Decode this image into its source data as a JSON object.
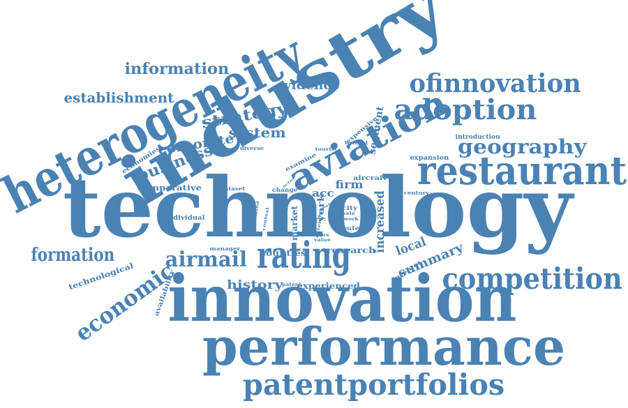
{
  "cloud": {
    "color": "#4a82b4",
    "words": [
      {
        "id": "technology",
        "text": "technology",
        "weight": 1.0
      },
      {
        "id": "innovation",
        "text": "innovation",
        "weight": 0.85
      },
      {
        "id": "industry",
        "text": "industry",
        "weight": 0.8
      },
      {
        "id": "heterogeneity",
        "text": "heterogeneity",
        "weight": 0.72
      },
      {
        "id": "performance",
        "text": "performance",
        "weight": 0.7
      },
      {
        "id": "restaurant",
        "text": "restaurant",
        "weight": 0.55
      },
      {
        "id": "aviation",
        "text": "aviation",
        "weight": 0.55
      },
      {
        "id": "rating",
        "text": "rating",
        "weight": 0.55
      },
      {
        "id": "patentportfolios",
        "text": "patentportfolios",
        "weight": 0.5
      },
      {
        "id": "competition",
        "text": "competition",
        "weight": 0.45
      },
      {
        "id": "adoption",
        "text": "adoption",
        "weight": 0.45
      },
      {
        "id": "ofinnovation",
        "text": "ofinnovation",
        "weight": 0.42
      },
      {
        "id": "economic",
        "text": "economic",
        "weight": 0.38
      },
      {
        "id": "geography",
        "text": "geography",
        "weight": 0.35
      },
      {
        "id": "airmail",
        "text": "airmail",
        "weight": 0.35
      },
      {
        "id": "formation",
        "text": "formation",
        "weight": 0.32
      },
      {
        "id": "business",
        "text": "business",
        "weight": 0.3
      },
      {
        "id": "information",
        "text": "information",
        "weight": 0.28
      },
      {
        "id": "establishment",
        "text": "establishment",
        "weight": 0.28
      },
      {
        "id": "strategy",
        "text": "strategy",
        "weight": 0.28
      },
      {
        "id": "system",
        "text": "system",
        "weight": 0.25
      },
      {
        "id": "corporate",
        "text": "corporate",
        "weight": 0.25
      },
      {
        "id": "summary",
        "text": "summary",
        "weight": 0.24
      },
      {
        "id": "local",
        "text": "local",
        "weight": 0.24
      },
      {
        "id": "evidence",
        "text": "evidence",
        "weight": 0.22
      },
      {
        "id": "history",
        "text": "history",
        "weight": 0.22
      },
      {
        "id": "increased",
        "text": "increased",
        "weight": 0.22
      },
      {
        "id": "firm",
        "text": "firm",
        "weight": 0.2
      },
      {
        "id": "segment",
        "text": "segment",
        "weight": 0.18
      },
      {
        "id": "acc",
        "text": "acc",
        "weight": 0.18
      },
      {
        "id": "research",
        "text": "research",
        "weight": 0.15
      },
      {
        "id": "counties",
        "text": "counties",
        "weight": 0.15
      },
      {
        "id": "experienced",
        "text": "experienced",
        "weight": 0.15
      },
      {
        "id": "comparative",
        "text": "comparative",
        "weight": 0.14
      },
      {
        "id": "york",
        "text": "york",
        "weight": 0.14
      },
      {
        "id": "market",
        "text": "market",
        "weight": 0.14
      },
      {
        "id": "technological",
        "text": "technological",
        "weight": 0.13
      },
      {
        "id": "individual",
        "text": "individual",
        "weight": 0.12
      },
      {
        "id": "introduction",
        "text": "introduction",
        "weight": 0.12
      },
      {
        "id": "expansion",
        "text": "expansion",
        "weight": 0.12
      },
      {
        "id": "aircraft",
        "text": "aircraft",
        "weight": 0.12
      },
      {
        "id": "economies",
        "text": "economies",
        "weight": 0.1
      },
      {
        "id": "availability",
        "text": "availability",
        "weight": 0.1
      },
      {
        "id": "inventor",
        "text": "inventor",
        "weight": 0.1
      },
      {
        "id": "expensive",
        "text": "expensive",
        "weight": 0.1
      },
      {
        "id": "examine",
        "text": "examine",
        "weight": 0.09
      },
      {
        "id": "change",
        "text": "change",
        "weight": 0.09
      },
      {
        "id": "city",
        "text": "city",
        "weight": 0.09
      },
      {
        "id": "route",
        "text": "route",
        "weight": 0.09
      },
      {
        "id": "century",
        "text": "century",
        "weight": 0.08
      },
      {
        "id": "manager",
        "text": "manager",
        "weight": 0.08
      },
      {
        "id": "dataset",
        "text": "dataset",
        "weight": 0.08
      },
      {
        "id": "diverse",
        "text": "diverse",
        "weight": 0.08
      },
      {
        "id": "insight",
        "text": "insight",
        "weight": 0.08
      },
      {
        "id": "tourist",
        "text": "tourist",
        "weight": 0.07
      },
      {
        "id": "work",
        "text": "work",
        "weight": 0.07
      },
      {
        "id": "related",
        "text": "related",
        "weight": 0.07
      },
      {
        "id": "context",
        "text": "context",
        "weight": 0.07
      },
      {
        "id": "patent",
        "text": "patent",
        "weight": 0.07
      },
      {
        "id": "sale",
        "text": "sale",
        "weight": 0.06
      },
      {
        "id": "more",
        "text": "more",
        "weight": 0.06
      },
      {
        "id": "value",
        "text": "value",
        "weight": 0.06
      },
      {
        "id": "result",
        "text": "result",
        "weight": 0.06
      },
      {
        "id": "extent",
        "text": "extent",
        "weight": 0.06
      },
      {
        "id": "actor",
        "text": "actor",
        "weight": 0.05
      },
      {
        "id": "point",
        "text": "point",
        "weight": 0.05
      },
      {
        "id": "place",
        "text": "place",
        "weight": 0.05
      },
      {
        "id": "scale",
        "text": "scale",
        "weight": 0.05
      }
    ]
  }
}
